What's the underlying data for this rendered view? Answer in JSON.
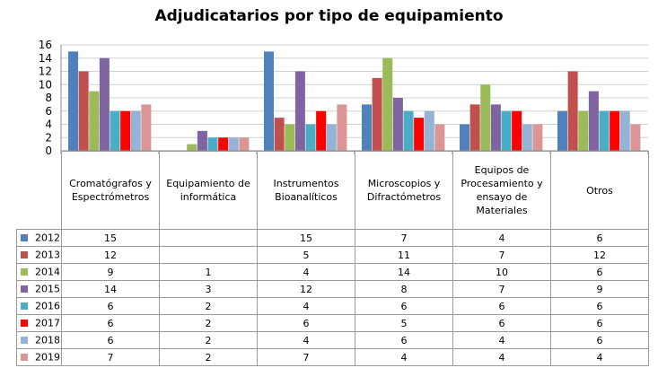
{
  "chart_data": {
    "type": "bar",
    "title": "Adjudicatarios por tipo de equipamiento",
    "xlabel": "",
    "ylabel": "",
    "ylim": [
      0,
      16
    ],
    "yticks": [
      "0",
      "2",
      "4",
      "6",
      "8",
      "10",
      "12",
      "14",
      "16"
    ],
    "grid": true,
    "legend": "table",
    "categories": [
      "Cromatógrafos y Espectrómetros",
      "Equipamiento de informática",
      "Instrumentos Bioanalíticos",
      "Microscopios y Difractómetros",
      "Equipos de Procesamiento y ensayo de Materiales",
      "Otros"
    ],
    "series": [
      {
        "name": "2012",
        "color": "#4f81bd",
        "values": [
          15,
          null,
          15,
          7,
          4,
          6
        ]
      },
      {
        "name": "2013",
        "color": "#c0504d",
        "values": [
          12,
          null,
          5,
          11,
          7,
          12
        ]
      },
      {
        "name": "2014",
        "color": "#9bbb59",
        "values": [
          9,
          1,
          4,
          14,
          10,
          6
        ]
      },
      {
        "name": "2015",
        "color": "#8064a2",
        "values": [
          14,
          3,
          12,
          8,
          7,
          9
        ]
      },
      {
        "name": "2016",
        "color": "#4bacc6",
        "values": [
          6,
          2,
          4,
          6,
          6,
          6
        ]
      },
      {
        "name": "2017",
        "color": "#ff0000",
        "values": [
          6,
          2,
          6,
          5,
          6,
          6
        ]
      },
      {
        "name": "2018",
        "color": "#95b3d7",
        "values": [
          6,
          2,
          4,
          6,
          4,
          6
        ]
      },
      {
        "name": "2019",
        "color": "#d99694",
        "values": [
          7,
          2,
          7,
          4,
          4,
          4
        ]
      }
    ]
  }
}
